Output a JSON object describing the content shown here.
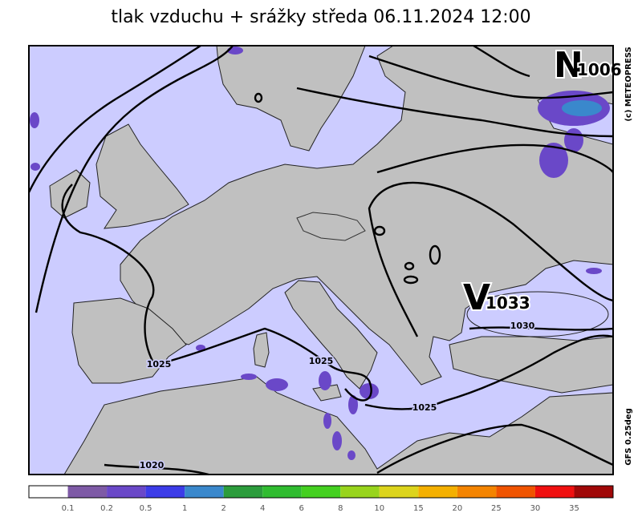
{
  "header": {
    "title": "tlak vzduchu + srážky  středa 06.11.2024 12:00"
  },
  "centers": [
    {
      "letter": "N",
      "value": "1006"
    },
    {
      "letter": "V",
      "value": "1033"
    }
  ],
  "isobar_labels": [
    "1025",
    "1025",
    "1025",
    "1030",
    "1020"
  ],
  "credits": [
    "(c) METEOPRESS",
    "GFS 0.25deg"
  ],
  "legend": {
    "colors": [
      "#ffffff",
      "#7e5aa6",
      "#6a48c8",
      "#3c3ce8",
      "#3a88cc",
      "#2c9c3c",
      "#30bc30",
      "#44d020",
      "#98d41c",
      "#dcd41c",
      "#f4b000",
      "#f48400",
      "#f05400",
      "#f01010",
      "#a00808"
    ],
    "ticks": [
      "0.1",
      "0.2",
      "0.5",
      "1",
      "2",
      "4",
      "6",
      "8",
      "10",
      "15",
      "20",
      "25",
      "30",
      "35"
    ]
  }
}
